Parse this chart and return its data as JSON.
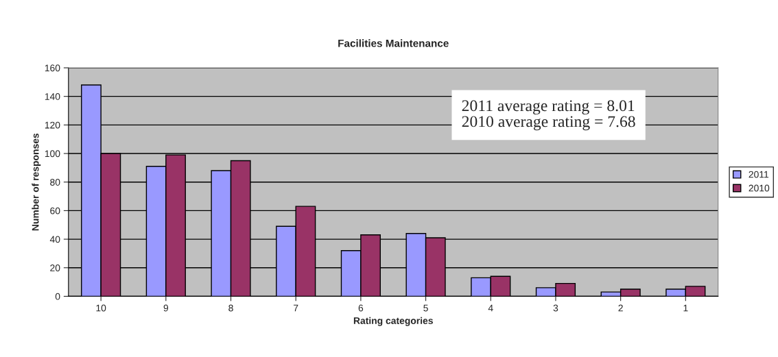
{
  "chart_data": {
    "type": "bar",
    "title": "Facilities Maintenance",
    "xlabel": "Rating categories",
    "ylabel": "Number of responses",
    "categories": [
      "10",
      "9",
      "8",
      "7",
      "6",
      "5",
      "4",
      "3",
      "2",
      "1"
    ],
    "series": [
      {
        "name": "2011",
        "color": "#9999ff",
        "values": [
          148,
          91,
          88,
          49,
          32,
          44,
          13,
          6,
          3,
          5
        ]
      },
      {
        "name": "2010",
        "color": "#993366",
        "values": [
          100,
          99,
          95,
          63,
          43,
          41,
          14,
          9,
          5,
          7
        ]
      }
    ],
    "ylim": [
      0,
      160
    ],
    "yticks": [
      0,
      20,
      40,
      60,
      80,
      100,
      120,
      140,
      160
    ],
    "grid": "y",
    "legend": "right",
    "annotations": [
      "2011 average rating = 8.01",
      "2010 average rating = 7.68"
    ]
  }
}
